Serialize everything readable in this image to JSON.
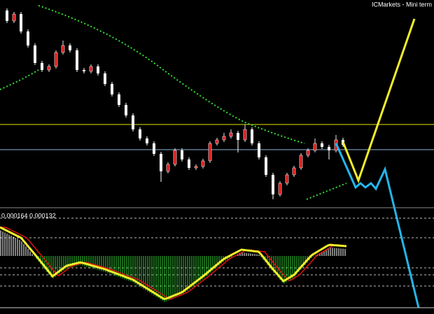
{
  "header": {
    "title": "ICMarkets - Mini term"
  },
  "indicator": {
    "label": "0.000164 0.000132"
  }
}
